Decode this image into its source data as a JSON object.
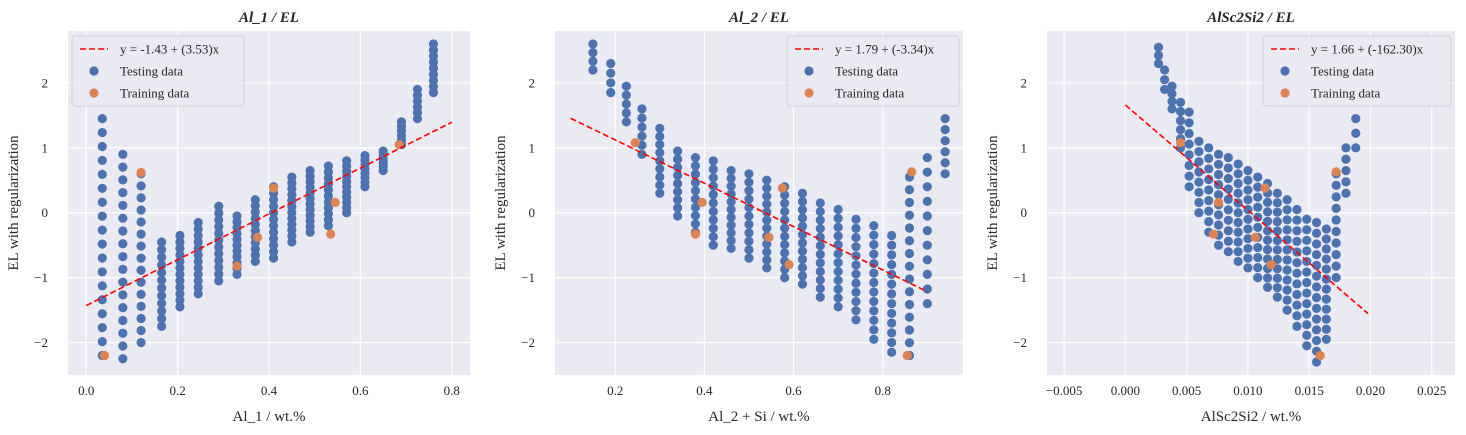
{
  "colors": {
    "background": "#eaeaf2",
    "grid": "#ffffff",
    "testing": "#4c72b0",
    "training": "#dd8452",
    "fit": "#ff0000"
  },
  "chart_data": [
    {
      "type": "scatter",
      "title": "Al_1 / EL",
      "xlabel": "Al_1 / wt.%",
      "ylabel": "EL with regularization",
      "xlim": [
        -0.04,
        0.84
      ],
      "ylim": [
        -2.5,
        2.8
      ],
      "xticks": [
        0.0,
        0.2,
        0.4,
        0.6,
        0.8
      ],
      "xtick_labels": [
        "0.0",
        "0.2",
        "0.4",
        "0.6",
        "0.8"
      ],
      "yticks": [
        -2,
        -1,
        0,
        1,
        2
      ],
      "ytick_labels": [
        "−2",
        "−1",
        "0",
        "1",
        "2"
      ],
      "grid": true,
      "legend_position": "top-left",
      "fit": {
        "label": "y = -1.43 + (3.53)x",
        "intercept": -1.43,
        "slope": 3.53,
        "x_range": [
          0.0,
          0.8
        ]
      },
      "series": [
        {
          "name": "Testing data",
          "columns": [
            {
              "x": 0.035,
              "y_top": 1.45,
              "y_bottom": -2.2,
              "n": 18
            },
            {
              "x": 0.08,
              "y_top": 0.9,
              "y_bottom": -2.25,
              "n": 17
            },
            {
              "x": 0.12,
              "y_top": 0.6,
              "y_bottom": -2.0,
              "n": 15
            },
            {
              "x": 0.165,
              "y_top": -0.45,
              "y_bottom": -1.75,
              "n": 12
            },
            {
              "x": 0.205,
              "y_top": -0.35,
              "y_bottom": -1.45,
              "n": 12
            },
            {
              "x": 0.245,
              "y_top": -0.15,
              "y_bottom": -1.25,
              "n": 12
            },
            {
              "x": 0.29,
              "y_top": 0.1,
              "y_bottom": -1.05,
              "n": 12
            },
            {
              "x": 0.33,
              "y_top": -0.05,
              "y_bottom": -0.95,
              "n": 11
            },
            {
              "x": 0.37,
              "y_top": 0.2,
              "y_bottom": -0.75,
              "n": 11
            },
            {
              "x": 0.41,
              "y_top": 0.4,
              "y_bottom": -0.7,
              "n": 12
            },
            {
              "x": 0.45,
              "y_top": 0.55,
              "y_bottom": -0.45,
              "n": 12
            },
            {
              "x": 0.49,
              "y_top": 0.65,
              "y_bottom": -0.3,
              "n": 12
            },
            {
              "x": 0.53,
              "y_top": 0.72,
              "y_bottom": -0.2,
              "n": 11
            },
            {
              "x": 0.57,
              "y_top": 0.8,
              "y_bottom": 0.0,
              "n": 11
            },
            {
              "x": 0.61,
              "y_top": 0.88,
              "y_bottom": 0.4,
              "n": 8
            },
            {
              "x": 0.65,
              "y_top": 0.95,
              "y_bottom": 0.65,
              "n": 6
            },
            {
              "x": 0.69,
              "y_top": 1.4,
              "y_bottom": 1.05,
              "n": 6
            },
            {
              "x": 0.725,
              "y_top": 1.9,
              "y_bottom": 1.45,
              "n": 6
            },
            {
              "x": 0.76,
              "y_top": 2.6,
              "y_bottom": 1.85,
              "n": 9
            }
          ]
        },
        {
          "name": "Training data",
          "points": [
            {
              "x": 0.04,
              "y": -2.2
            },
            {
              "x": 0.12,
              "y": 0.62
            },
            {
              "x": 0.33,
              "y": -0.82
            },
            {
              "x": 0.375,
              "y": -0.38
            },
            {
              "x": 0.41,
              "y": 0.38
            },
            {
              "x": 0.535,
              "y": -0.33
            },
            {
              "x": 0.545,
              "y": 0.16
            },
            {
              "x": 0.685,
              "y": 1.05
            }
          ]
        }
      ]
    },
    {
      "type": "scatter",
      "title": "Al_2 / EL",
      "xlabel": "Al_2 + Si / wt.%",
      "ylabel": "EL with regularization",
      "xlim": [
        0.065,
        0.98
      ],
      "ylim": [
        -2.5,
        2.8
      ],
      "xticks": [
        0.2,
        0.4,
        0.6,
        0.8
      ],
      "xtick_labels": [
        "0.2",
        "0.4",
        "0.6",
        "0.8"
      ],
      "yticks": [
        -2,
        -1,
        0,
        1,
        2
      ],
      "ytick_labels": [
        "−2",
        "−1",
        "0",
        "1",
        "2"
      ],
      "grid": true,
      "legend_position": "top-right",
      "fit": {
        "label": "y = 1.79 + (-3.34)x",
        "intercept": 1.79,
        "slope": -3.34,
        "x_range": [
          0.1,
          0.9
        ]
      },
      "series": [
        {
          "name": "Testing data",
          "columns": [
            {
              "x": 0.15,
              "y_top": 2.6,
              "y_bottom": 2.2,
              "n": 4
            },
            {
              "x": 0.19,
              "y_top": 2.3,
              "y_bottom": 1.85,
              "n": 4
            },
            {
              "x": 0.225,
              "y_top": 1.95,
              "y_bottom": 1.4,
              "n": 5
            },
            {
              "x": 0.26,
              "y_top": 1.6,
              "y_bottom": 0.9,
              "n": 6
            },
            {
              "x": 0.3,
              "y_top": 1.3,
              "y_bottom": 0.3,
              "n": 9
            },
            {
              "x": 0.34,
              "y_top": 0.95,
              "y_bottom": -0.05,
              "n": 9
            },
            {
              "x": 0.38,
              "y_top": 0.85,
              "y_bottom": -0.3,
              "n": 10
            },
            {
              "x": 0.42,
              "y_top": 0.8,
              "y_bottom": -0.5,
              "n": 11
            },
            {
              "x": 0.46,
              "y_top": 0.65,
              "y_bottom": -0.55,
              "n": 11
            },
            {
              "x": 0.5,
              "y_top": 0.6,
              "y_bottom": -0.7,
              "n": 11
            },
            {
              "x": 0.54,
              "y_top": 0.5,
              "y_bottom": -0.85,
              "n": 12
            },
            {
              "x": 0.58,
              "y_top": 0.4,
              "y_bottom": -1.0,
              "n": 12
            },
            {
              "x": 0.62,
              "y_top": 0.3,
              "y_bottom": -1.1,
              "n": 12
            },
            {
              "x": 0.66,
              "y_top": 0.15,
              "y_bottom": -1.3,
              "n": 12
            },
            {
              "x": 0.7,
              "y_top": 0.05,
              "y_bottom": -1.45,
              "n": 12
            },
            {
              "x": 0.74,
              "y_top": -0.1,
              "y_bottom": -1.65,
              "n": 12
            },
            {
              "x": 0.78,
              "y_top": -0.2,
              "y_bottom": -1.95,
              "n": 13
            },
            {
              "x": 0.82,
              "y_top": -0.35,
              "y_bottom": -2.15,
              "n": 13
            },
            {
              "x": 0.86,
              "y_top": 0.55,
              "y_bottom": -2.2,
              "n": 15
            },
            {
              "x": 0.9,
              "y_top": 0.85,
              "y_bottom": -1.4,
              "n": 11
            },
            {
              "x": 0.94,
              "y_top": 1.45,
              "y_bottom": 0.6,
              "n": 6
            }
          ]
        },
        {
          "name": "Training data",
          "points": [
            {
              "x": 0.245,
              "y": 1.08
            },
            {
              "x": 0.38,
              "y": -0.33
            },
            {
              "x": 0.395,
              "y": 0.16
            },
            {
              "x": 0.545,
              "y": -0.38
            },
            {
              "x": 0.575,
              "y": 0.38
            },
            {
              "x": 0.59,
              "y": -0.8
            },
            {
              "x": 0.855,
              "y": -2.2
            },
            {
              "x": 0.865,
              "y": 0.63
            }
          ]
        }
      ]
    },
    {
      "type": "scatter",
      "title": "AlSc2Si2 / EL",
      "xlabel": "AlSc2Si2 / wt.%",
      "ylabel": "EL with regularization",
      "xlim": [
        -0.0064,
        0.0269
      ],
      "ylim": [
        -2.5,
        2.8
      ],
      "xticks": [
        -0.005,
        0.0,
        0.005,
        0.01,
        0.015,
        0.02,
        0.025
      ],
      "xtick_labels": [
        "−0.005",
        "0.000",
        "0.005",
        "0.010",
        "0.015",
        "0.020",
        "0.025"
      ],
      "yticks": [
        -2,
        -1,
        0,
        1,
        2
      ],
      "ytick_labels": [
        "−2",
        "−1",
        "0",
        "1",
        "2"
      ],
      "grid": true,
      "legend_position": "top-right",
      "fit": {
        "label": "y = 1.66 + (-162.30)x",
        "intercept": 1.66,
        "slope": -162.3,
        "x_range": [
          0.0,
          0.0198
        ]
      },
      "series": [
        {
          "name": "Testing data",
          "columns": [
            {
              "x": 0.0027,
              "y_top": 2.55,
              "y_bottom": 2.3,
              "n": 3
            },
            {
              "x": 0.0032,
              "y_top": 2.2,
              "y_bottom": 1.9,
              "n": 3
            },
            {
              "x": 0.0038,
              "y_top": 1.95,
              "y_bottom": 1.6,
              "n": 4
            },
            {
              "x": 0.0045,
              "y_top": 1.7,
              "y_bottom": 1.0,
              "n": 6
            },
            {
              "x": 0.0052,
              "y_top": 1.55,
              "y_bottom": 0.4,
              "n": 8
            },
            {
              "x": 0.006,
              "y_top": 1.1,
              "y_bottom": 0.0,
              "n": 8
            },
            {
              "x": 0.0068,
              "y_top": 1.0,
              "y_bottom": -0.3,
              "n": 9
            },
            {
              "x": 0.0076,
              "y_top": 0.9,
              "y_bottom": -0.5,
              "n": 10
            },
            {
              "x": 0.0084,
              "y_top": 0.85,
              "y_bottom": -0.6,
              "n": 10
            },
            {
              "x": 0.0092,
              "y_top": 0.75,
              "y_bottom": -0.75,
              "n": 11
            },
            {
              "x": 0.01,
              "y_top": 0.65,
              "y_bottom": -0.85,
              "n": 11
            },
            {
              "x": 0.0108,
              "y_top": 0.55,
              "y_bottom": -1.0,
              "n": 11
            },
            {
              "x": 0.0116,
              "y_top": 0.45,
              "y_bottom": -1.15,
              "n": 12
            },
            {
              "x": 0.0124,
              "y_top": 0.3,
              "y_bottom": -1.3,
              "n": 12
            },
            {
              "x": 0.0132,
              "y_top": 0.2,
              "y_bottom": -1.5,
              "n": 12
            },
            {
              "x": 0.014,
              "y_top": 0.05,
              "y_bottom": -1.75,
              "n": 12
            },
            {
              "x": 0.0148,
              "y_top": -0.1,
              "y_bottom": -2.05,
              "n": 13
            },
            {
              "x": 0.0156,
              "y_top": -0.15,
              "y_bottom": -2.3,
              "n": 14
            },
            {
              "x": 0.0164,
              "y_top": -0.25,
              "y_bottom": -1.95,
              "n": 12
            },
            {
              "x": 0.0172,
              "y_top": 0.6,
              "y_bottom": -1.0,
              "n": 10
            },
            {
              "x": 0.018,
              "y_top": 1.0,
              "y_bottom": 0.3,
              "n": 5
            },
            {
              "x": 0.0188,
              "y_top": 1.45,
              "y_bottom": 1.0,
              "n": 3
            }
          ]
        },
        {
          "name": "Training data",
          "points": [
            {
              "x": 0.0045,
              "y": 1.08
            },
            {
              "x": 0.0072,
              "y": -0.33
            },
            {
              "x": 0.0076,
              "y": 0.16
            },
            {
              "x": 0.0106,
              "y": -0.38
            },
            {
              "x": 0.0114,
              "y": 0.38
            },
            {
              "x": 0.0119,
              "y": -0.8
            },
            {
              "x": 0.0159,
              "y": -2.2
            },
            {
              "x": 0.0172,
              "y": 0.63
            }
          ]
        }
      ]
    }
  ]
}
